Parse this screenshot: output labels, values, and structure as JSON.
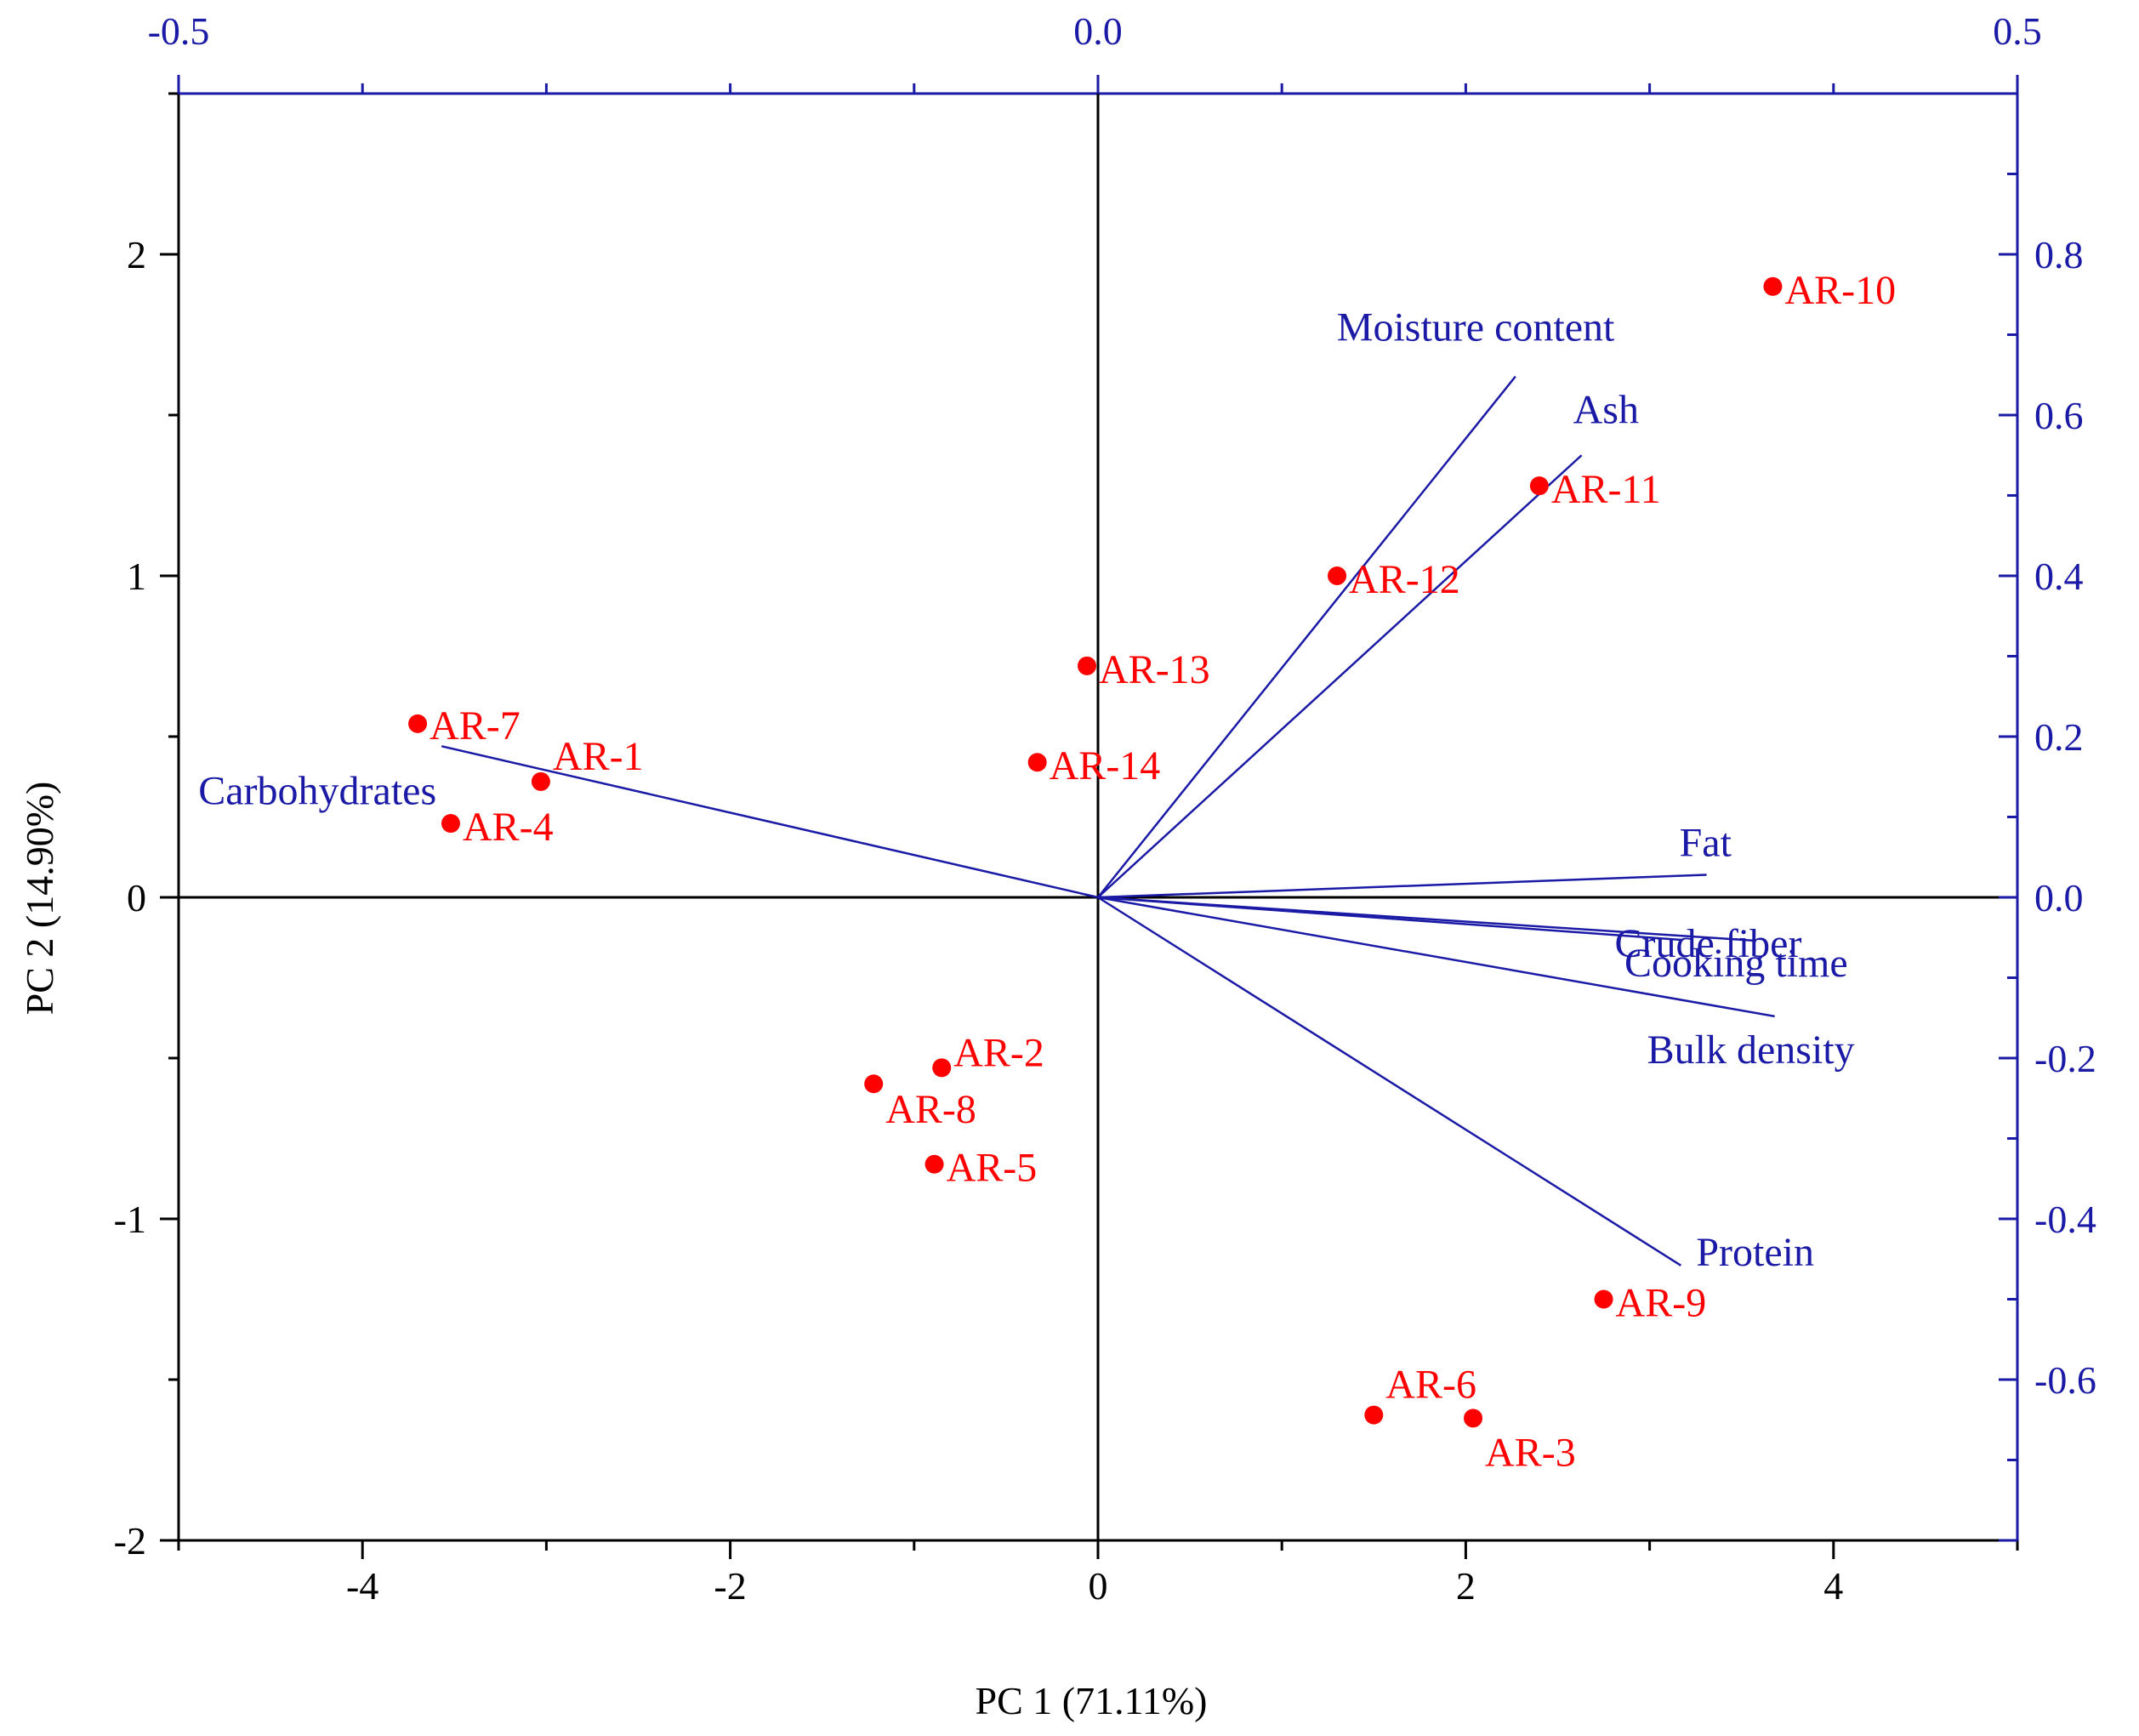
{
  "chart_data": {
    "type": "scatter",
    "xlabel": "PC 1 (71.11%)",
    "ylabel": "PC 2 (14.90%)",
    "xlim": [
      -5,
      5
    ],
    "ylim": [
      -2,
      2.5
    ],
    "x_ticks": [
      "-4",
      "-2",
      "0",
      "2",
      "4"
    ],
    "y_ticks": [
      "-2",
      "-1",
      "0",
      "1",
      "2"
    ],
    "top_xlim": [
      -0.5,
      0.5
    ],
    "right_ylim": [
      -0.8,
      1.0
    ],
    "top_ticks": [
      "-0.5",
      "0.0",
      "0.5"
    ],
    "right_ticks": [
      "-0.6",
      "-0.4",
      "-0.2",
      "0.0",
      "0.2",
      "0.4",
      "0.6",
      "0.8"
    ],
    "grid": false,
    "scores": [
      {
        "name": "AR-1",
        "x": -3.03,
        "y": 0.36
      },
      {
        "name": "AR-2",
        "x": -0.85,
        "y": -0.53
      },
      {
        "name": "AR-3",
        "x": 2.04,
        "y": -1.62
      },
      {
        "name": "AR-4",
        "x": -3.52,
        "y": 0.23
      },
      {
        "name": "AR-5",
        "x": -0.89,
        "y": -0.83
      },
      {
        "name": "AR-6",
        "x": 1.5,
        "y": -1.61
      },
      {
        "name": "AR-7",
        "x": -3.7,
        "y": 0.54
      },
      {
        "name": "AR-8",
        "x": -1.22,
        "y": -0.58
      },
      {
        "name": "AR-9",
        "x": 2.75,
        "y": -1.25
      },
      {
        "name": "AR-10",
        "x": 3.67,
        "y": 1.9
      },
      {
        "name": "AR-11",
        "x": 2.4,
        "y": 1.28
      },
      {
        "name": "AR-12",
        "x": 1.3,
        "y": 1.0
      },
      {
        "name": "AR-13",
        "x": -0.06,
        "y": 0.72
      },
      {
        "name": "AR-14",
        "x": -0.33,
        "y": 0.42
      }
    ],
    "loadings": [
      {
        "name": "Moisture content",
        "x": 0.227,
        "y": 0.648
      },
      {
        "name": "Ash",
        "x": 0.263,
        "y": 0.55
      },
      {
        "name": "Carbohydrates",
        "x": -0.357,
        "y": 0.188
      },
      {
        "name": "Fat",
        "x": 0.331,
        "y": 0.028
      },
      {
        "name": "Crude fiber",
        "x": 0.318,
        "y": -0.053
      },
      {
        "name": "Cooking time",
        "x": 0.358,
        "y": -0.054
      },
      {
        "name": "Bulk density",
        "x": 0.368,
        "y": -0.148
      },
      {
        "name": "Protein",
        "x": 0.317,
        "y": -0.458
      }
    ]
  },
  "colors": {
    "scores": "#ff0000",
    "loadings": "#1a1aa6",
    "axes": "#000000"
  }
}
